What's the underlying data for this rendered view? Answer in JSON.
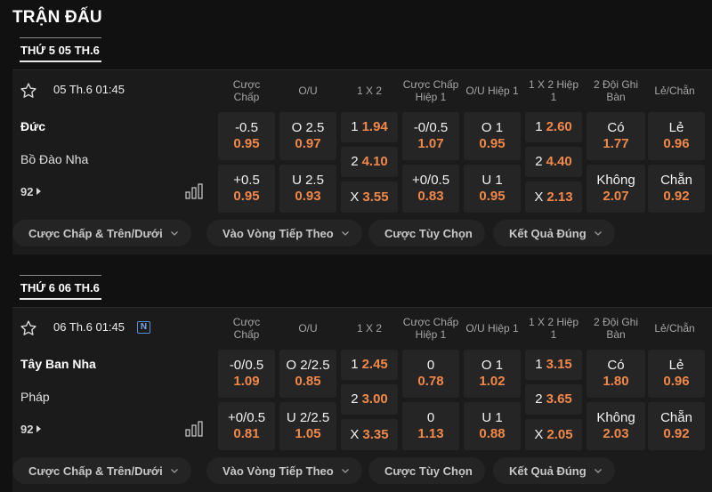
{
  "page_title": "TRẬN ĐẤU",
  "colors": {
    "background": "#111111",
    "card": "#1b1b1b",
    "cell": "#252525",
    "odds": "#f1884a",
    "badge": "#5a8fd8"
  },
  "columns": [
    "Cược Chấp",
    "O/U",
    "1 X 2",
    "Cược Chấp Hiệp 1",
    "O/U Hiệp 1",
    "1 X 2 Hiệp 1",
    "2 Đội Ghi Bàn",
    "Lẻ/Chẵn"
  ],
  "chips": [
    "Cược Chấp & Trên/Dưới",
    "Vào Vòng Tiếp Theo",
    "Cược Tùy Chọn",
    "Kết Quả Đúng"
  ],
  "days": [
    {
      "date_label": "THỨ 5 05 TH.6",
      "match": {
        "time": "05 Th.6 01:45",
        "badge": "",
        "home": "Đức",
        "away": "Bồ Đào Nha",
        "more": "92",
        "handicap": [
          {
            "label": "-0.5",
            "odd": "0.95"
          },
          {
            "label": "+0.5",
            "odd": "0.95"
          }
        ],
        "ou": [
          {
            "label": "O 2.5",
            "odd": "0.97"
          },
          {
            "label": "U 2.5",
            "odd": "0.93"
          }
        ],
        "x12": [
          {
            "label": "1",
            "odd": "1.94"
          },
          {
            "label": "2",
            "odd": "4.10"
          },
          {
            "label": "X",
            "odd": "3.55"
          }
        ],
        "handicap_h1": [
          {
            "label": "-0/0.5",
            "odd": "1.07"
          },
          {
            "label": "+0/0.5",
            "odd": "0.83"
          }
        ],
        "ou_h1": [
          {
            "label": "O 1",
            "odd": "0.95"
          },
          {
            "label": "U 1",
            "odd": "0.95"
          }
        ],
        "x12_h1": [
          {
            "label": "1",
            "odd": "2.60"
          },
          {
            "label": "2",
            "odd": "4.40"
          },
          {
            "label": "X",
            "odd": "2.13"
          }
        ],
        "btts": [
          {
            "label": "Có",
            "odd": "1.77"
          },
          {
            "label": "Không",
            "odd": "2.07"
          }
        ],
        "oddeven": [
          {
            "label": "Lẻ",
            "odd": "0.96"
          },
          {
            "label": "Chẵn",
            "odd": "0.92"
          }
        ]
      }
    },
    {
      "date_label": "THỨ 6 06 TH.6",
      "match": {
        "time": "06 Th.6 01:45",
        "badge": "N",
        "home": "Tây Ban Nha",
        "away": "Pháp",
        "more": "92",
        "handicap": [
          {
            "label": "-0/0.5",
            "odd": "1.09"
          },
          {
            "label": "+0/0.5",
            "odd": "0.81"
          }
        ],
        "ou": [
          {
            "label": "O 2/2.5",
            "odd": "0.85"
          },
          {
            "label": "U 2/2.5",
            "odd": "1.05"
          }
        ],
        "x12": [
          {
            "label": "1",
            "odd": "2.45"
          },
          {
            "label": "2",
            "odd": "3.00"
          },
          {
            "label": "X",
            "odd": "3.35"
          }
        ],
        "handicap_h1": [
          {
            "label": "0",
            "odd": "0.78"
          },
          {
            "label": "0",
            "odd": "1.13"
          }
        ],
        "ou_h1": [
          {
            "label": "O 1",
            "odd": "1.02"
          },
          {
            "label": "U 1",
            "odd": "0.88"
          }
        ],
        "x12_h1": [
          {
            "label": "1",
            "odd": "3.15"
          },
          {
            "label": "2",
            "odd": "3.65"
          },
          {
            "label": "X",
            "odd": "2.05"
          }
        ],
        "btts": [
          {
            "label": "Có",
            "odd": "1.80"
          },
          {
            "label": "Không",
            "odd": "2.03"
          }
        ],
        "oddeven": [
          {
            "label": "Lẻ",
            "odd": "0.96"
          },
          {
            "label": "Chẵn",
            "odd": "0.92"
          }
        ]
      }
    }
  ]
}
